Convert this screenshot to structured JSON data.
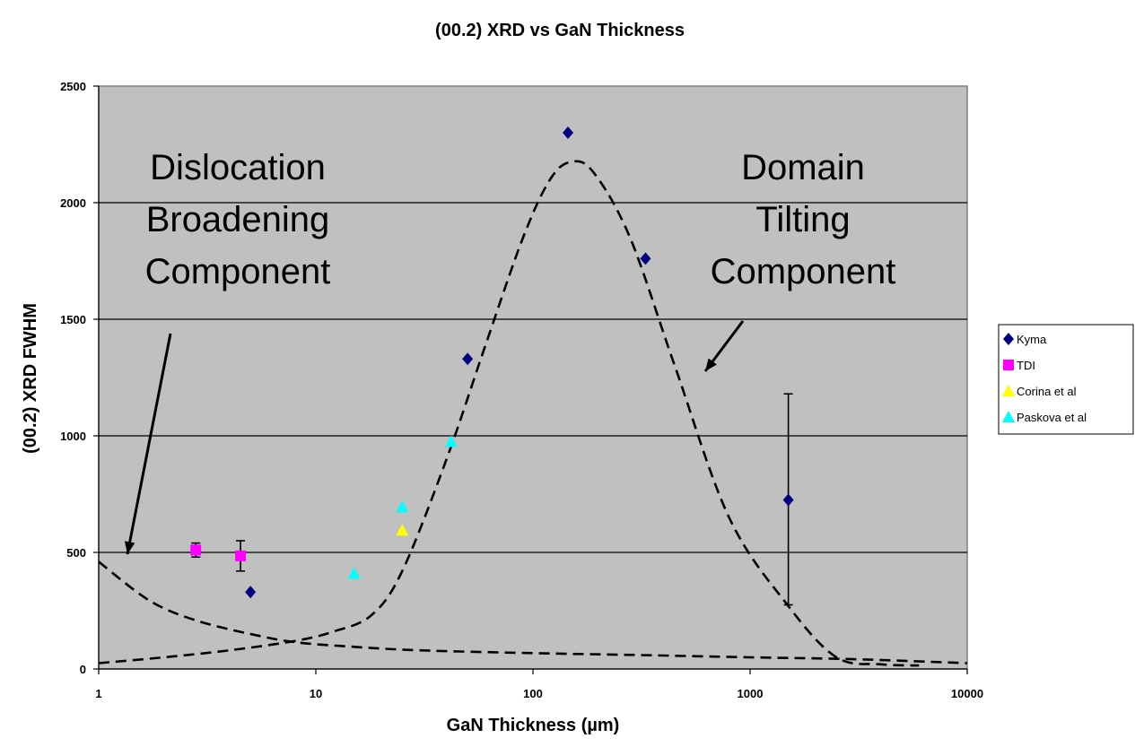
{
  "chart_data": {
    "type": "scatter",
    "title": "(00.2) XRD vs GaN Thickness",
    "xlabel": "GaN Thickness (µm)",
    "ylabel": "(00.2) XRD FWHM",
    "x_scale": "log",
    "xlim": [
      1,
      10000
    ],
    "ylim": [
      0,
      2500
    ],
    "x_ticks": [
      1,
      10,
      100,
      1000,
      10000
    ],
    "x_tick_labels": [
      "1",
      "10",
      "100",
      "1000",
      "10000"
    ],
    "y_ticks": [
      0,
      500,
      1000,
      1500,
      2000,
      2500
    ],
    "y_tick_labels": [
      "0",
      "500",
      "1000",
      "1500",
      "2000",
      "2500"
    ],
    "grid": "horizontal",
    "plot_background": "#c0c0c0",
    "legend_position": "right",
    "series": [
      {
        "name": "Kyma",
        "marker": "diamond",
        "color": "#000080",
        "points": [
          {
            "x": 5,
            "y": 330
          },
          {
            "x": 50,
            "y": 1330
          },
          {
            "x": 145,
            "y": 2300
          },
          {
            "x": 330,
            "y": 1760
          },
          {
            "x": 1500,
            "y": 725,
            "err_low": 275,
            "err_high": 1180
          }
        ]
      },
      {
        "name": "TDI",
        "marker": "square",
        "color": "#ff00ff",
        "points": [
          {
            "x": 2.8,
            "y": 510,
            "err_low": 480,
            "err_high": 540
          },
          {
            "x": 4.5,
            "y": 485,
            "err_low": 420,
            "err_high": 550
          }
        ]
      },
      {
        "name": "Corina et al",
        "marker": "triangle",
        "color": "#ffff00",
        "points": [
          {
            "x": 25,
            "y": 595
          }
        ]
      },
      {
        "name": "Paskova et al",
        "marker": "triangle",
        "color": "#00ffff",
        "points": [
          {
            "x": 15,
            "y": 410
          },
          {
            "x": 25,
            "y": 695
          },
          {
            "x": 42,
            "y": 975
          }
        ]
      }
    ],
    "curves": [
      {
        "style": "dashed",
        "color": "#000000",
        "points": [
          [
            1,
            460
          ],
          [
            1.5,
            330
          ],
          [
            2,
            260
          ],
          [
            3,
            200
          ],
          [
            5,
            150
          ],
          [
            8,
            115
          ],
          [
            15,
            95
          ],
          [
            30,
            80
          ],
          [
            100,
            68
          ],
          [
            300,
            60
          ],
          [
            1000,
            50
          ],
          [
            3000,
            42
          ],
          [
            10000,
            25
          ]
        ]
      },
      {
        "style": "dashed",
        "color": "#000000",
        "points": [
          [
            1,
            25
          ],
          [
            2,
            50
          ],
          [
            4,
            80
          ],
          [
            8,
            120
          ],
          [
            12,
            160
          ],
          [
            18,
            230
          ],
          [
            25,
            420
          ],
          [
            40,
            900
          ],
          [
            60,
            1380
          ],
          [
            90,
            1850
          ],
          [
            120,
            2100
          ],
          [
            150,
            2175
          ],
          [
            190,
            2130
          ],
          [
            280,
            1850
          ],
          [
            450,
            1300
          ],
          [
            800,
            650
          ],
          [
            1500,
            270
          ],
          [
            2500,
            50
          ],
          [
            4000,
            20
          ],
          [
            6000,
            15
          ]
        ]
      }
    ],
    "annotations": [
      {
        "lines": [
          "Dislocation",
          "Broadening",
          "Component"
        ]
      },
      {
        "lines": [
          "Domain",
          "Tilting",
          "Component"
        ]
      }
    ]
  }
}
